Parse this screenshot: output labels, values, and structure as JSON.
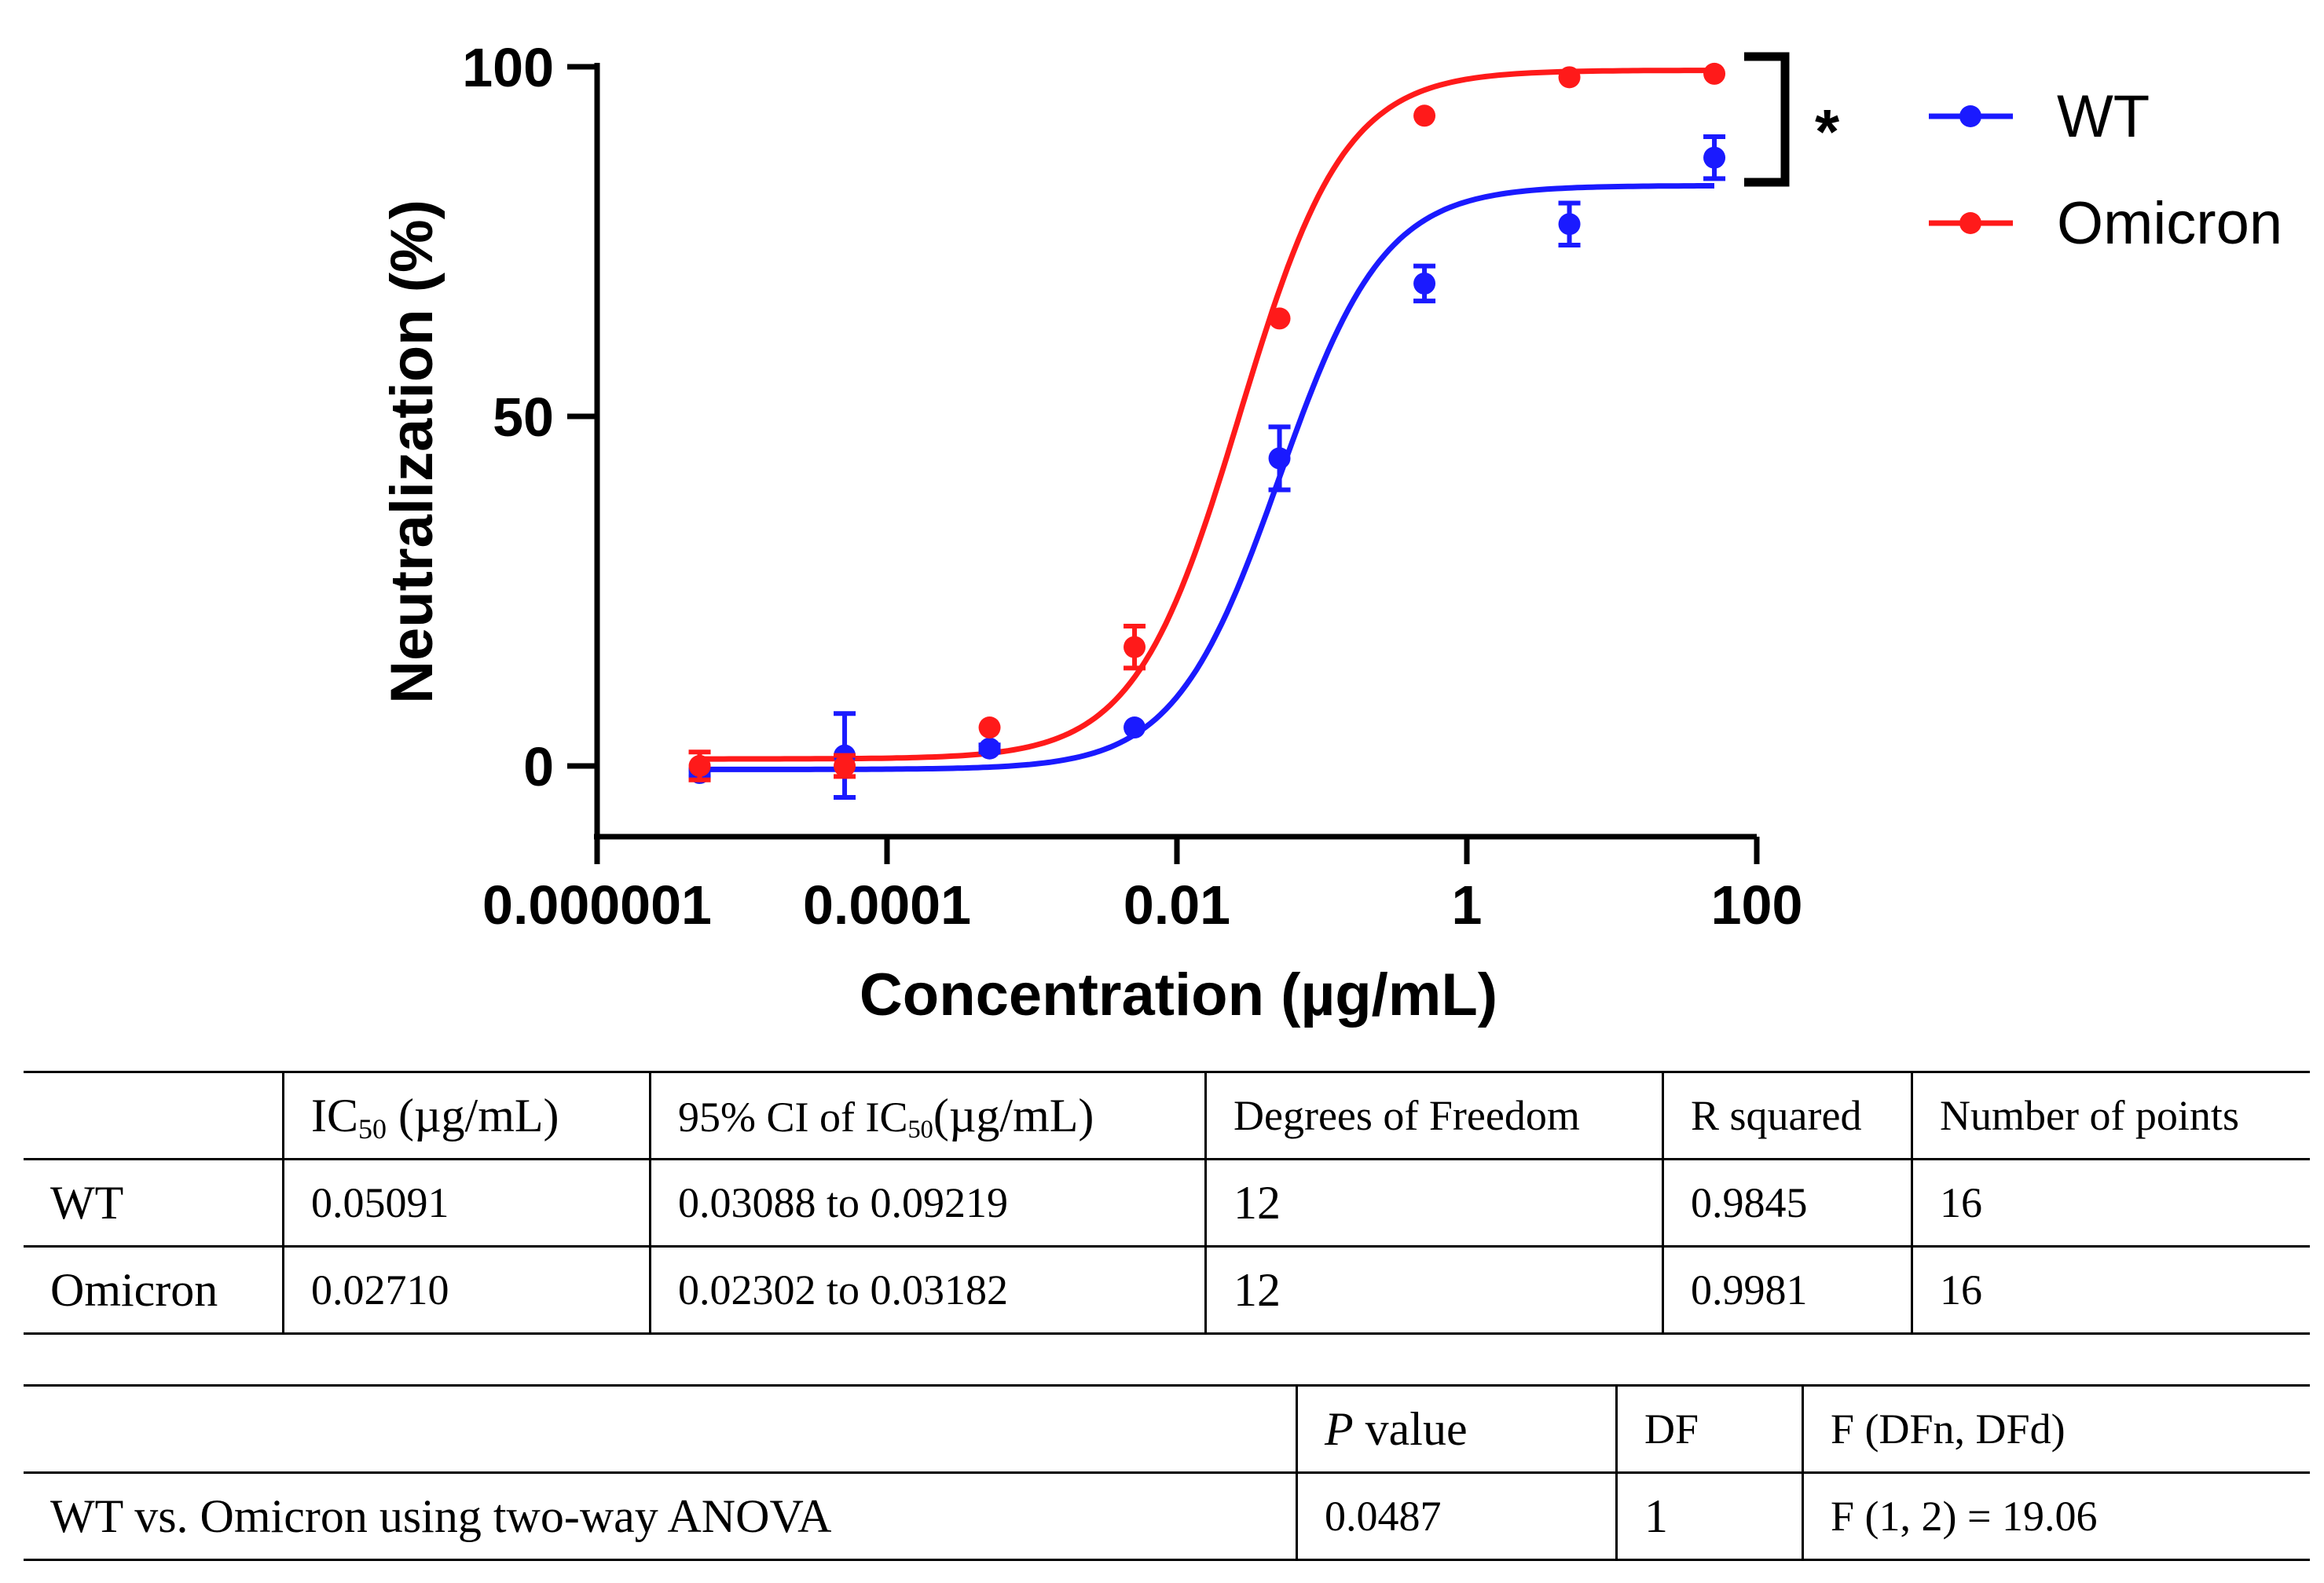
{
  "chart_data": {
    "type": "line",
    "ylabel": "Neutralization (%)",
    "xlabel": "Concentration (µg/mL)",
    "x_scale": "log",
    "xlim": [
      1e-06,
      100
    ],
    "ylim": [
      -10,
      100
    ],
    "x_ticks": [
      1e-06,
      0.0001,
      0.01,
      1,
      100
    ],
    "x_tick_labels": [
      "0.000001",
      "0.0001",
      "0.01",
      "1",
      "100"
    ],
    "y_ticks": [
      0,
      50,
      100
    ],
    "y_tick_labels": [
      "0",
      "50",
      "100"
    ],
    "significance_marker": "*",
    "legend_position": "top-right",
    "series": [
      {
        "name": "WT",
        "color": "#1a1aff",
        "x": [
          5.1e-06,
          5.1e-05,
          0.00051,
          0.0051,
          0.051,
          0.51,
          5.1,
          51
        ],
        "y": [
          -1,
          1.5,
          2.5,
          5.5,
          44,
          69,
          77.5,
          87
        ],
        "err": [
          0.5,
          6,
          0.5,
          0,
          4.5,
          2.5,
          3,
          3
        ],
        "fit": {
          "bottom": -0.5,
          "top": 83,
          "ec50": 0.05091,
          "hill": 1.2
        }
      },
      {
        "name": "Omicron",
        "color": "#ff1a1a",
        "x": [
          5.1e-06,
          5.1e-05,
          0.00051,
          0.0051,
          0.051,
          0.51,
          5.1,
          51
        ],
        "y": [
          0,
          0,
          5.5,
          17,
          64,
          93,
          98.5,
          99
        ],
        "err": [
          2,
          1.5,
          0,
          3,
          0,
          0,
          0,
          0
        ],
        "fit": {
          "bottom": 1,
          "top": 99.5,
          "ec50": 0.0271,
          "hill": 1.2
        }
      }
    ]
  },
  "table1": {
    "headers": [
      "",
      "IC",
      "50",
      " (µg/mL)",
      "95% CI of IC",
      "50",
      "(µg/mL)",
      "Degrees of Freedom",
      "R squared",
      "Number of points"
    ],
    "rows": [
      [
        "WT",
        "0.05091",
        "0.03088 to 0.09219",
        "12",
        "0.9845",
        "16"
      ],
      [
        "Omicron",
        "0.02710",
        "0.02302 to 0.03182",
        "12",
        "0.9981",
        "16"
      ]
    ]
  },
  "table2": {
    "headers": [
      "",
      "P",
      " value",
      "DF",
      "F (DFn, DFd)"
    ],
    "rows": [
      [
        "WT vs. Omicron using two-way ANOVA",
        "0.0487",
        "1",
        "F (1, 2) = 19.06"
      ]
    ]
  }
}
